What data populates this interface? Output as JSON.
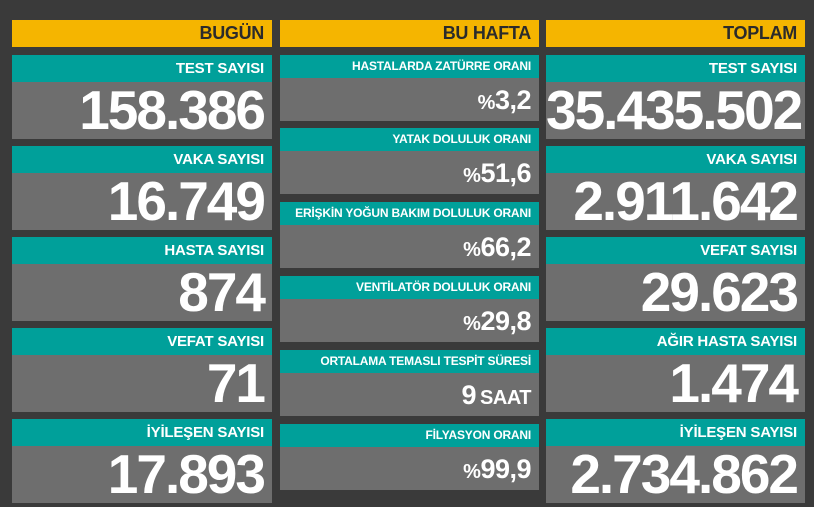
{
  "today": {
    "header": "BUGÜN",
    "cards": [
      {
        "label": "TEST SAYISI",
        "value": "158.386"
      },
      {
        "label": "VAKA SAYISI",
        "value": "16.749"
      },
      {
        "label": "HASTA SAYISI",
        "value": "874"
      },
      {
        "label": "VEFAT SAYISI",
        "value": "71"
      },
      {
        "label": "İYİLEŞEN SAYISI",
        "value": "17.893"
      }
    ]
  },
  "week": {
    "header": "BU HAFTA",
    "cards": [
      {
        "label": "HASTALARDA ZATÜRRE ORANI",
        "prefix": "%",
        "value": "3,2",
        "unit": ""
      },
      {
        "label": "YATAK DOLULUK ORANI",
        "prefix": "%",
        "value": "51,6",
        "unit": ""
      },
      {
        "label": "ERİŞKİN YOĞUN BAKIM DOLULUK ORANI",
        "prefix": "%",
        "value": "66,2",
        "unit": ""
      },
      {
        "label": "VENTİLATÖR DOLULUK ORANI",
        "prefix": "%",
        "value": "29,8",
        "unit": ""
      },
      {
        "label": "ORTALAMA TEMASLI TESPİT SÜRESİ",
        "prefix": "",
        "value": "9",
        "unit": "SAAT"
      },
      {
        "label": "FİLYASYON ORANI",
        "prefix": "%",
        "value": "99,9",
        "unit": ""
      }
    ]
  },
  "total": {
    "header": "TOPLAM",
    "cards": [
      {
        "label": "TEST SAYISI",
        "value": "35.435.502"
      },
      {
        "label": "VAKA SAYISI",
        "value": "2.911.642"
      },
      {
        "label": "VEFAT SAYISI",
        "value": "29.623"
      },
      {
        "label": "AĞIR HASTA SAYISI",
        "value": "1.474"
      },
      {
        "label": "İYİLEŞEN SAYISI",
        "value": "2.734.862"
      }
    ]
  },
  "colors": {
    "header_bg": "#f5b500",
    "label_bg": "#00a09a",
    "card_bg": "#6e6e6e",
    "page_bg": "#3a3a3a"
  }
}
